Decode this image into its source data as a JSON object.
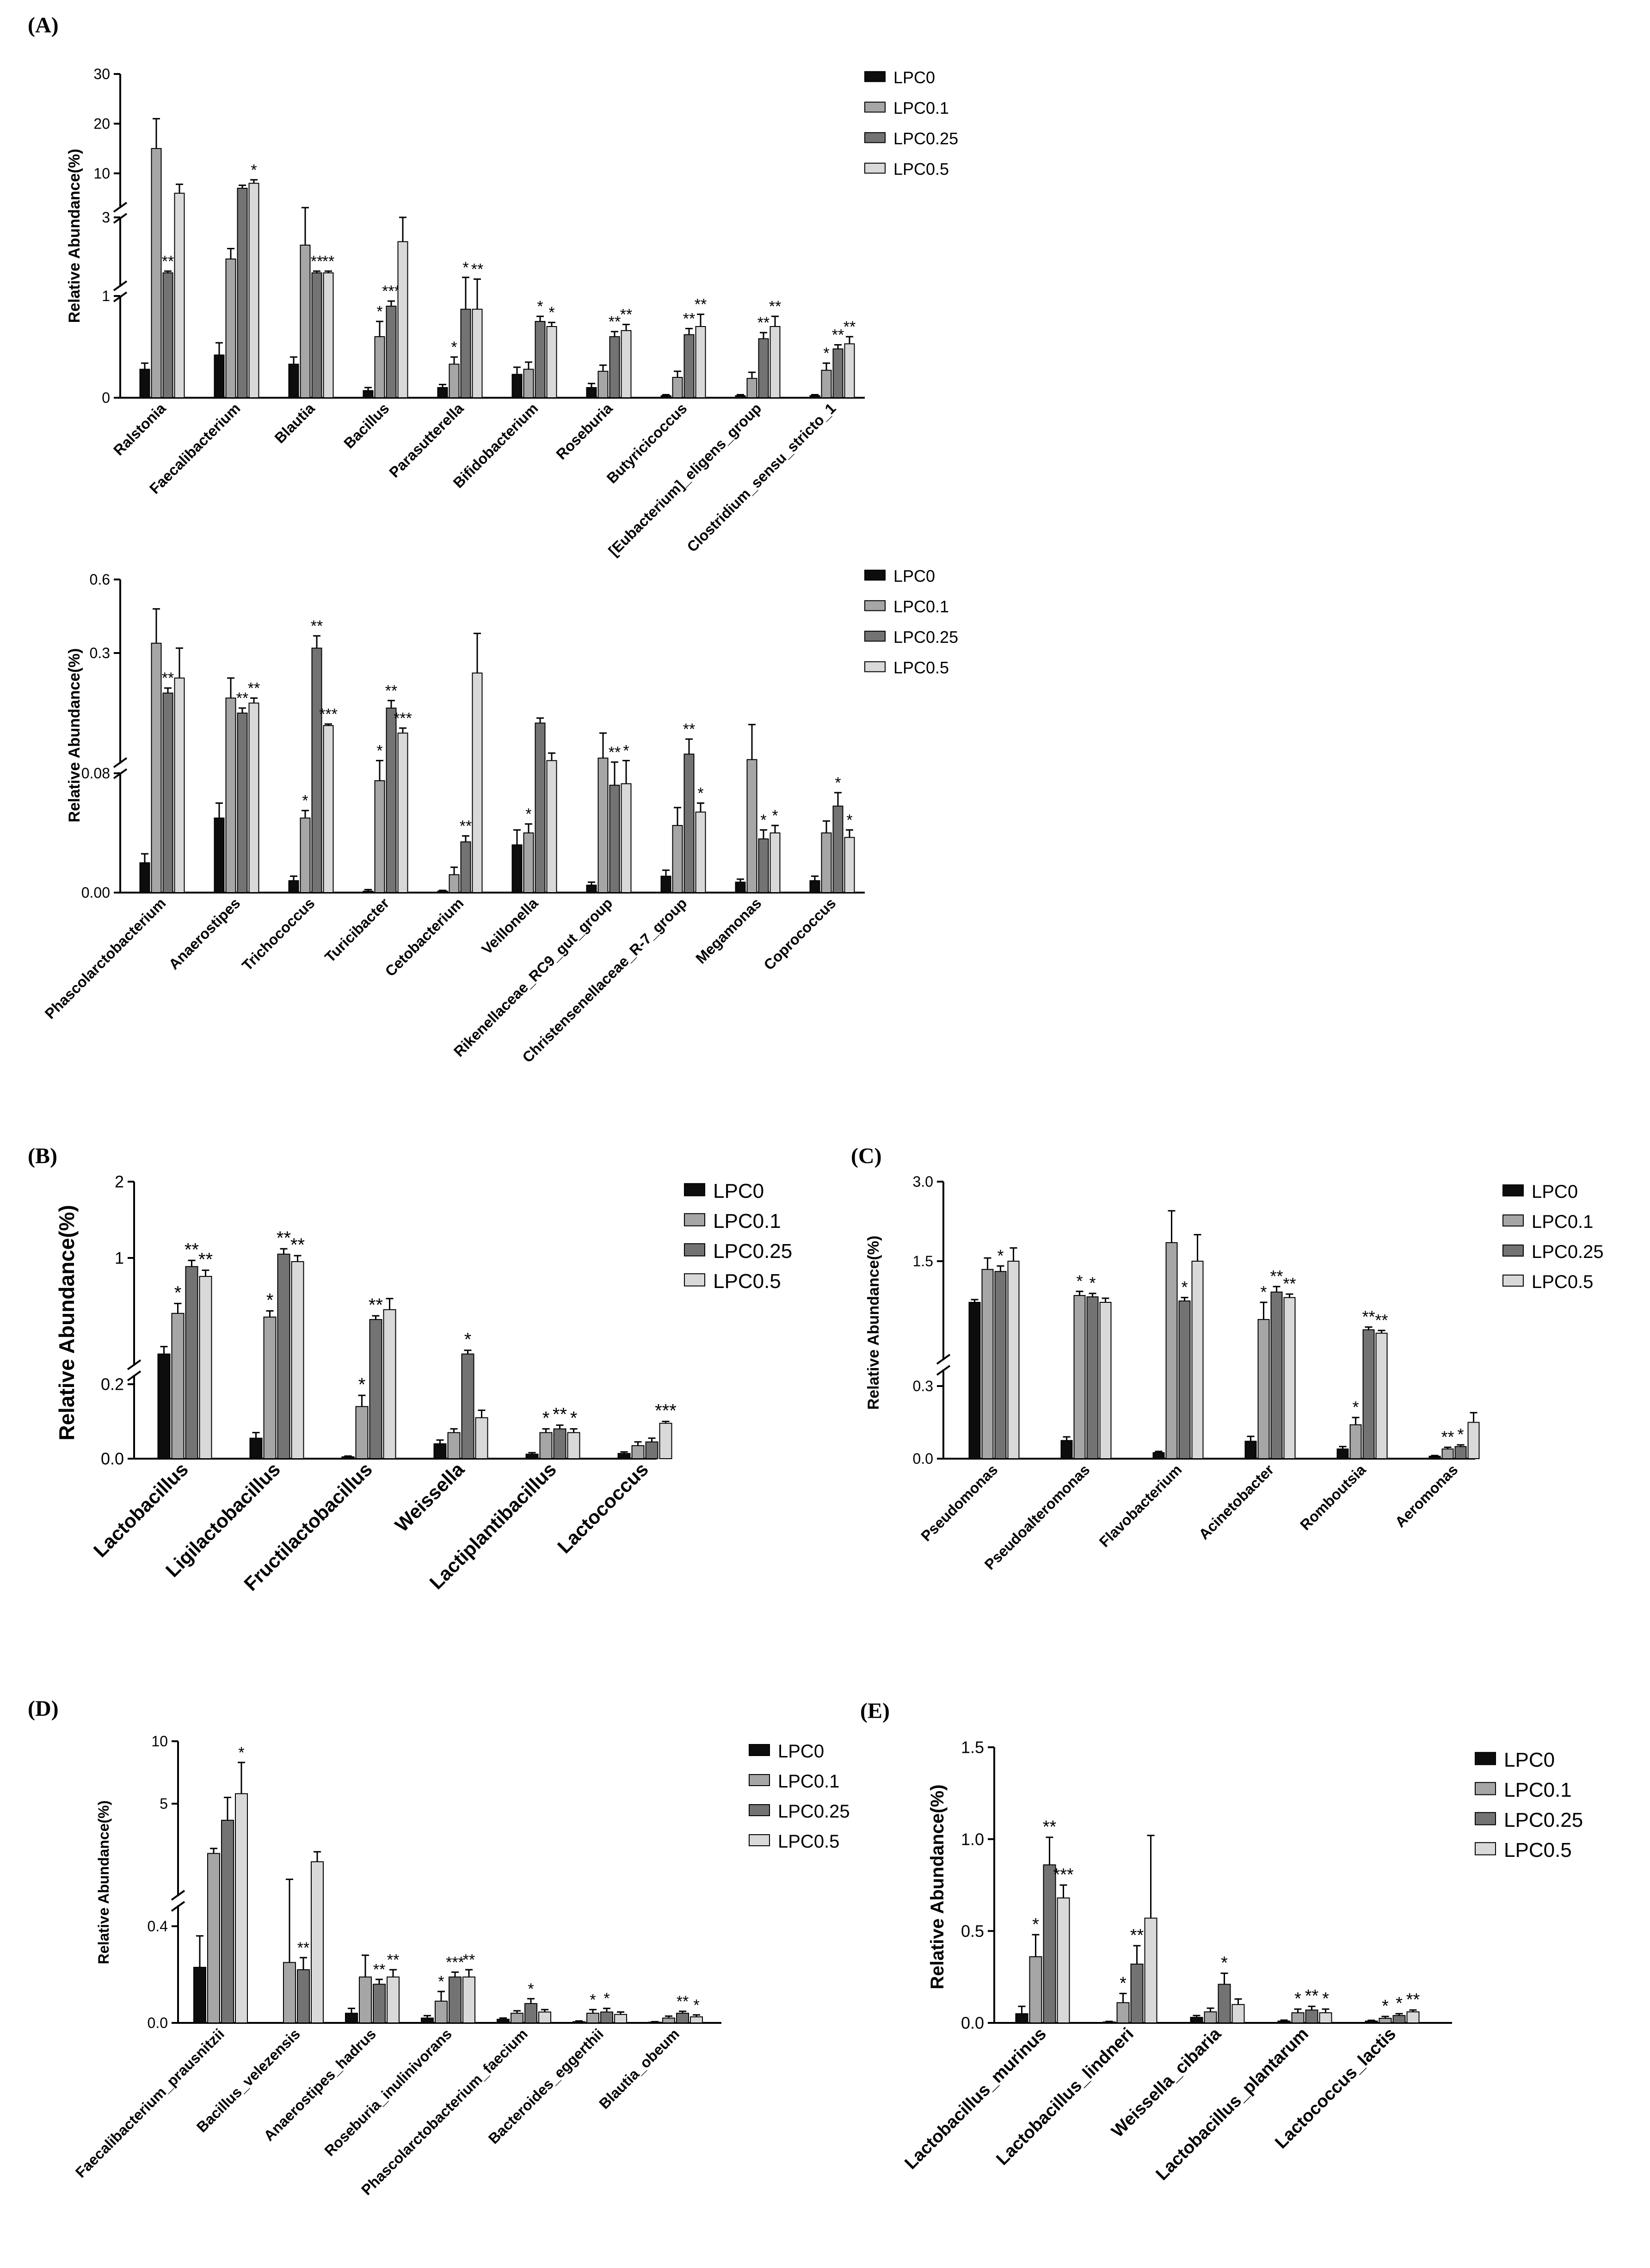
{
  "legend": [
    "LPC0",
    "LPC0.1",
    "LPC0.25",
    "LPC0.5"
  ],
  "colors": [
    "#0d0d0d",
    "#a6a6a6",
    "#737373",
    "#d9d9d9"
  ],
  "chart_data": [
    {
      "id": "A1",
      "panel_label": "(A)",
      "type": "bar",
      "ylabel": "Relative Abundance(%)",
      "y_tick_labels": [
        "0",
        "1",
        "3",
        "10",
        "20",
        "30"
      ],
      "y_tick_values": [
        0,
        1,
        3,
        10,
        20,
        30
      ],
      "categories": [
        "Ralstonia",
        "Faecalibacterium",
        "Blautia",
        "Bacillus",
        "Parasutterella",
        "Bifidobacterium",
        "Roseburia",
        "Butyricicoccus",
        "[Eubacterium]_eligens_group",
        "Clostridium_sensu_stricto_1"
      ],
      "series": [
        {
          "name": "LPC0",
          "values": [
            0.28,
            0.42,
            0.33,
            0.07,
            0.1,
            0.23,
            0.1,
            0.02,
            0.02,
            0.02
          ],
          "errors": [
            0.06,
            0.12,
            0.07,
            0.03,
            0.03,
            0.07,
            0.04,
            0.01,
            0.01,
            0.01
          ],
          "sig": [
            "",
            "",
            "",
            "",
            "",
            "",
            "",
            "",
            "",
            ""
          ]
        },
        {
          "name": "LPC0.1",
          "values": [
            15,
            1.8,
            2.2,
            0.6,
            0.33,
            0.28,
            0.26,
            0.2,
            0.19,
            0.27
          ],
          "errors": [
            6,
            0.3,
            0.9,
            0.15,
            0.07,
            0.07,
            0.06,
            0.06,
            0.06,
            0.07
          ],
          "sig": [
            "",
            "",
            "",
            "*",
            "*",
            "",
            "",
            "",
            "",
            "*"
          ]
        },
        {
          "name": "LPC0.25",
          "values": [
            1.4,
            7.0,
            1.4,
            0.9,
            0.87,
            0.75,
            0.6,
            0.62,
            0.58,
            0.48
          ],
          "errors": [
            0.05,
            0.6,
            0.05,
            0.05,
            0.4,
            0.05,
            0.05,
            0.06,
            0.06,
            0.04
          ],
          "sig": [
            "**",
            "",
            "**",
            "***",
            "*",
            "*",
            "**",
            "**",
            "**",
            "**"
          ]
        },
        {
          "name": "LPC0.5",
          "values": [
            6.0,
            8.0,
            1.4,
            2.3,
            0.87,
            0.7,
            0.66,
            0.7,
            0.7,
            0.53
          ],
          "errors": [
            1.8,
            0.7,
            0.05,
            0.7,
            0.35,
            0.04,
            0.06,
            0.12,
            0.1,
            0.07
          ],
          "sig": [
            "",
            "*",
            "**",
            "",
            "**",
            "*",
            "**",
            "**",
            "**",
            "**"
          ]
        }
      ]
    },
    {
      "id": "A2",
      "type": "bar",
      "ylabel": "Relative Abundance(%)",
      "y_tick_labels": [
        "0.00",
        "0.08",
        "0.3",
        "0.6"
      ],
      "y_tick_values": [
        0,
        0.08,
        0.3,
        0.6
      ],
      "categories": [
        "Phascolarctobacterium",
        "Anaerostipes",
        "Trichococcus",
        "Turicibacter",
        "Cetobacterium",
        "Veillonella",
        "Rikenellaceae_RC9_gut_group",
        "Christensenellaceae_R-7_group",
        "Megamonas",
        "Coprococcus"
      ],
      "series": [
        {
          "name": "LPC0",
          "values": [
            0.02,
            0.05,
            0.008,
            0.001,
            0.001,
            0.032,
            0.005,
            0.011,
            0.007,
            0.008
          ],
          "errors": [
            0.006,
            0.01,
            0.003,
            0.001,
            0.0005,
            0.01,
            0.002,
            0.004,
            0.002,
            0.003
          ],
          "sig": [
            "",
            "",
            "",
            "",
            "",
            "",
            "",
            "",
            "",
            ""
          ]
        },
        {
          "name": "LPC0.1",
          "values": [
            0.34,
            0.21,
            0.05,
            0.075,
            0.012,
            0.04,
            0.09,
            0.045,
            0.087,
            0.04
          ],
          "errors": [
            0.14,
            0.04,
            0.005,
            0.01,
            0.005,
            0.006,
            0.05,
            0.012,
            0.07,
            0.008
          ],
          "sig": [
            "",
            "",
            "*",
            "*",
            "",
            "*",
            "",
            "",
            "",
            ""
          ]
        },
        {
          "name": "LPC0.25",
          "values": [
            0.22,
            0.18,
            0.32,
            0.19,
            0.034,
            0.16,
            0.072,
            0.098,
            0.036,
            0.058
          ],
          "errors": [
            0.01,
            0.01,
            0.05,
            0.015,
            0.004,
            0.01,
            0.01,
            0.03,
            0.006,
            0.009
          ],
          "sig": [
            "**",
            "**",
            "**",
            "**",
            "**",
            "",
            "**",
            "**",
            "*",
            "*"
          ]
        },
        {
          "name": "LPC0.5",
          "values": [
            0.25,
            0.2,
            0.155,
            0.14,
            0.26,
            0.085,
            0.073,
            0.054,
            0.04,
            0.037
          ],
          "errors": [
            0.07,
            0.01,
            0.003,
            0.01,
            0.12,
            0.015,
            0.012,
            0.006,
            0.005,
            0.005
          ],
          "sig": [
            "",
            "**",
            "***",
            "***",
            "",
            "",
            "*",
            "*",
            "*",
            "*"
          ]
        }
      ]
    },
    {
      "id": "B",
      "panel_label": "(B)",
      "type": "bar",
      "ylabel": "Relative Abundance(%)",
      "y_tick_labels": [
        "0.0",
        "0.2",
        "1",
        "2"
      ],
      "y_tick_values": [
        0,
        0.2,
        1,
        2
      ],
      "categories": [
        "Lactobacillus",
        "Ligilactobacillus",
        "Fructilactobacillus",
        "Weissella",
        "Lactiplantibacillus",
        "Lactococcus"
      ],
      "series": [
        {
          "name": "LPC0",
          "values": [
            0.22,
            0.055,
            0.005,
            0.04,
            0.012,
            0.014
          ],
          "errors": [
            0.06,
            0.015,
            0.002,
            0.01,
            0.004,
            0.004
          ],
          "sig": [
            "",
            "",
            "",
            "",
            "",
            ""
          ]
        },
        {
          "name": "LPC0.1",
          "values": [
            0.55,
            0.52,
            0.14,
            0.07,
            0.07,
            0.035
          ],
          "errors": [
            0.08,
            0.05,
            0.03,
            0.01,
            0.01,
            0.01
          ],
          "sig": [
            "*",
            "*",
            "*",
            "",
            "*",
            ""
          ]
        },
        {
          "name": "LPC0.25",
          "values": [
            0.93,
            1.05,
            0.5,
            0.22,
            0.08,
            0.045
          ],
          "errors": [
            0.05,
            0.07,
            0.03,
            0.03,
            0.01,
            0.01
          ],
          "sig": [
            "**",
            "**",
            "**",
            "*",
            "**",
            ""
          ]
        },
        {
          "name": "LPC0.5",
          "values": [
            0.85,
            0.97,
            0.58,
            0.11,
            0.07,
            0.095
          ],
          "errors": [
            0.05,
            0.06,
            0.09,
            0.02,
            0.01,
            0.005
          ],
          "sig": [
            "**",
            "**",
            "",
            "",
            "*",
            "***"
          ]
        }
      ]
    },
    {
      "id": "C",
      "panel_label": "(C)",
      "type": "bar",
      "ylabel": "Relative Abundance(%)",
      "y_tick_labels": [
        "0.0",
        "0.3",
        "1.5",
        "3.0"
      ],
      "y_tick_values": [
        0,
        0.3,
        1.5,
        3.0
      ],
      "categories": [
        "Pseudomonas",
        "Pseudoalteromonas",
        "Flavobacterium",
        "Acinetobacter",
        "Romboutsia",
        "Aeromonas"
      ],
      "series": [
        {
          "name": "LPC0",
          "values": [
            0.9,
            0.075,
            0.025,
            0.072,
            0.04,
            0.01
          ],
          "errors": [
            0.04,
            0.015,
            0.005,
            0.02,
            0.01,
            0.003
          ],
          "sig": [
            "",
            "",
            "",
            "",
            "",
            ""
          ]
        },
        {
          "name": "LPC0.1",
          "values": [
            1.38,
            1.0,
            1.85,
            0.65,
            0.14,
            0.04
          ],
          "errors": [
            0.18,
            0.06,
            0.6,
            0.25,
            0.03,
            0.007
          ],
          "sig": [
            "",
            "*",
            "",
            "*",
            "*",
            "**"
          ]
        },
        {
          "name": "LPC0.25",
          "values": [
            1.35,
            0.98,
            0.92,
            1.05,
            0.5,
            0.05
          ],
          "errors": [
            0.08,
            0.05,
            0.05,
            0.08,
            0.04,
            0.007
          ],
          "sig": [
            "*",
            "*",
            "*",
            "**",
            "**",
            "*"
          ]
        },
        {
          "name": "LPC0.5",
          "values": [
            1.5,
            0.9,
            1.5,
            0.97,
            0.45,
            0.15
          ],
          "errors": [
            0.25,
            0.06,
            0.5,
            0.05,
            0.04,
            0.04
          ],
          "sig": [
            "",
            "",
            "",
            "**",
            "**",
            ""
          ]
        }
      ]
    },
    {
      "id": "D",
      "panel_label": "(D)",
      "type": "bar",
      "ylabel": "Relative Abundance(%)",
      "y_tick_labels": [
        "0.0",
        "0.4",
        "5",
        "10"
      ],
      "y_tick_values": [
        0,
        0.4,
        5,
        10
      ],
      "categories": [
        "Faecalibacterium_prausnitzii",
        "Bacillus_velezensis",
        "Anaerostipes_hadrus",
        "Roseburia_inulinivorans",
        "Phascolarctobacterium_faecium",
        "Bacteroides_eggerthii",
        "Blautia_obeum"
      ],
      "series": [
        {
          "name": "LPC0",
          "values": [
            0.23,
            0.0,
            0.04,
            0.02,
            0.015,
            0.005,
            0.003
          ],
          "errors": [
            0.13,
            0.0,
            0.02,
            0.01,
            0.005,
            0.003,
            0.002
          ],
          "sig": [
            "",
            "",
            "",
            "",
            "",
            "",
            ""
          ]
        },
        {
          "name": "LPC0.1",
          "values": [
            2.0,
            0.25,
            0.19,
            0.09,
            0.04,
            0.04,
            0.02
          ],
          "errors": [
            0.3,
            0.19,
            0.09,
            0.04,
            0.01,
            0.015,
            0.008
          ],
          "sig": [
            "",
            "",
            "",
            "*",
            "",
            "*",
            ""
          ]
        },
        {
          "name": "LPC0.25",
          "values": [
            4.0,
            0.22,
            0.16,
            0.19,
            0.08,
            0.045,
            0.04
          ],
          "errors": [
            1.5,
            0.05,
            0.02,
            0.02,
            0.02,
            0.015,
            0.008
          ],
          "sig": [
            "",
            "**",
            "**",
            "***",
            "*",
            "*",
            "**"
          ]
        },
        {
          "name": "LPC0.5",
          "values": [
            5.8,
            1.5,
            0.19,
            0.19,
            0.045,
            0.035,
            0.025
          ],
          "errors": [
            2.5,
            0.6,
            0.03,
            0.03,
            0.01,
            0.01,
            0.008
          ],
          "sig": [
            "*",
            "",
            "**",
            "**",
            "",
            "",
            "*"
          ]
        }
      ]
    },
    {
      "id": "E",
      "panel_label": "(E)",
      "type": "bar",
      "ylabel": "Relative Abundance(%)",
      "y_tick_labels": [
        "0.0",
        "0.5",
        "1.0",
        "1.5"
      ],
      "y_tick_values": [
        0,
        0.5,
        1.0,
        1.5
      ],
      "categories": [
        "Lactobacillus_murinus",
        "Lactobacillus_lindneri",
        "Weissella_cibaria",
        "Lactobacillus_plantarum",
        "Lactococcus_lactis"
      ],
      "series": [
        {
          "name": "LPC0",
          "values": [
            0.05,
            0.005,
            0.03,
            0.01,
            0.01
          ],
          "errors": [
            0.04,
            0.003,
            0.01,
            0.005,
            0.004
          ],
          "sig": [
            "",
            "",
            "",
            "",
            ""
          ]
        },
        {
          "name": "LPC0.1",
          "values": [
            0.36,
            0.11,
            0.06,
            0.055,
            0.025
          ],
          "errors": [
            0.12,
            0.05,
            0.02,
            0.02,
            0.01
          ],
          "sig": [
            "*",
            "*",
            "",
            "*",
            "*"
          ]
        },
        {
          "name": "LPC0.25",
          "values": [
            0.86,
            0.32,
            0.21,
            0.07,
            0.04
          ],
          "errors": [
            0.15,
            0.1,
            0.06,
            0.02,
            0.01
          ],
          "sig": [
            "**",
            "**",
            "*",
            "**",
            "*"
          ]
        },
        {
          "name": "LPC0.5",
          "values": [
            0.68,
            0.57,
            0.1,
            0.055,
            0.06
          ],
          "errors": [
            0.07,
            0.45,
            0.03,
            0.02,
            0.01
          ],
          "sig": [
            "***",
            "",
            "",
            "*",
            "**"
          ]
        }
      ]
    }
  ]
}
